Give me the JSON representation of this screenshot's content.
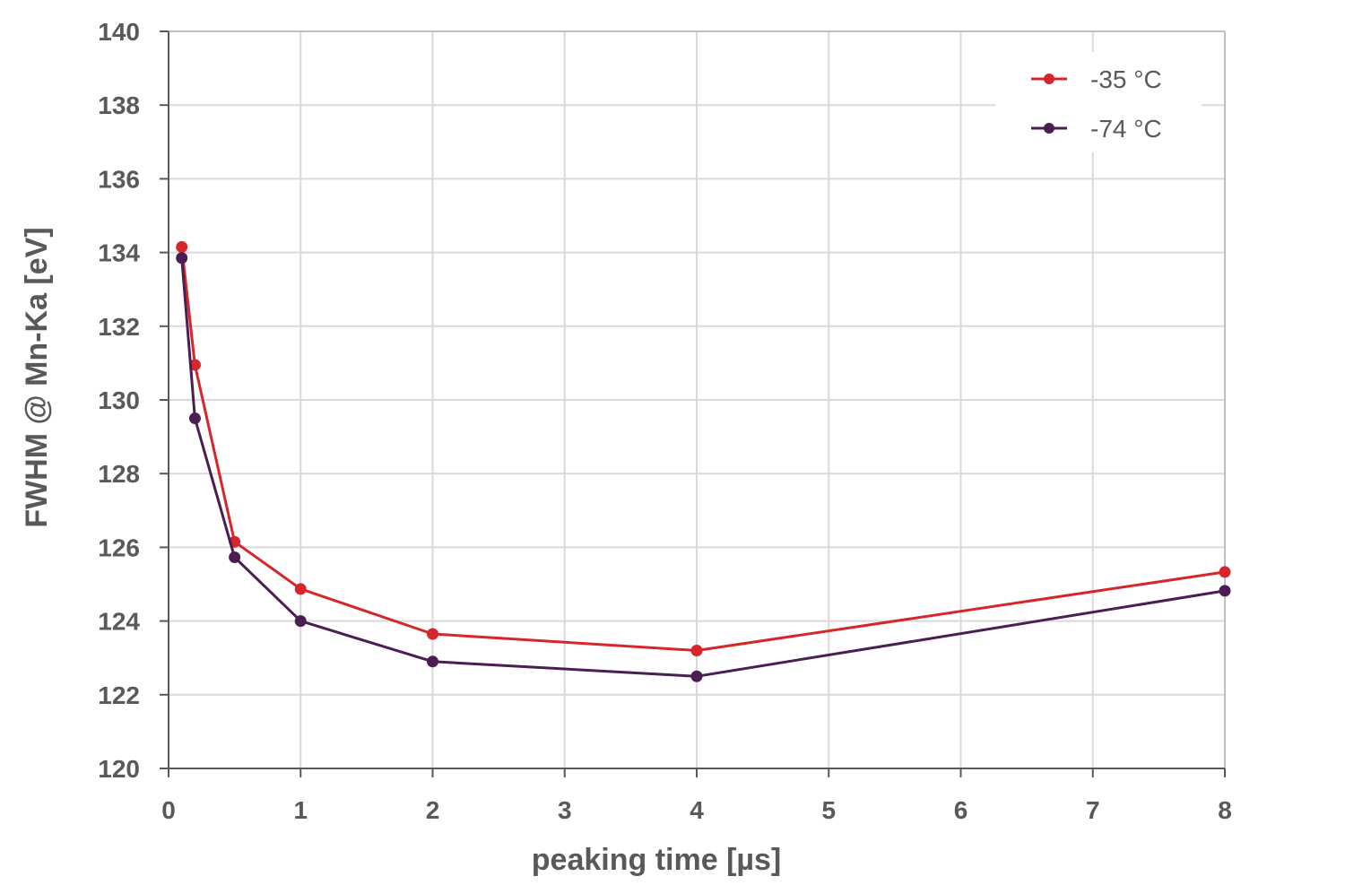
{
  "chart_data": {
    "type": "line",
    "title": "",
    "xlabel": "peaking time [µs]",
    "ylabel": "FWHM @ Mn-Ka [eV]",
    "xlim": [
      0,
      8
    ],
    "ylim": [
      120,
      140
    ],
    "x_ticks": [
      "0",
      "1",
      "2",
      "3",
      "4",
      "5",
      "6",
      "7",
      "8"
    ],
    "y_ticks": [
      "120",
      "122",
      "124",
      "126",
      "128",
      "130",
      "132",
      "134",
      "136",
      "138",
      "140"
    ],
    "grid": true,
    "legend_position": "top-right",
    "series": [
      {
        "name": "-35 °C",
        "color": "#d7262b",
        "x": [
          0.1,
          0.2,
          0.5,
          1,
          2,
          4,
          8
        ],
        "y": [
          134.15,
          130.95,
          126.15,
          124.87,
          123.65,
          123.2,
          125.33
        ]
      },
      {
        "name": "-74 °C",
        "color": "#4a1e52",
        "x": [
          0.1,
          0.2,
          0.5,
          1,
          2,
          4,
          8
        ],
        "y": [
          133.85,
          129.5,
          125.73,
          124.0,
          122.9,
          122.5,
          124.82
        ]
      }
    ]
  }
}
